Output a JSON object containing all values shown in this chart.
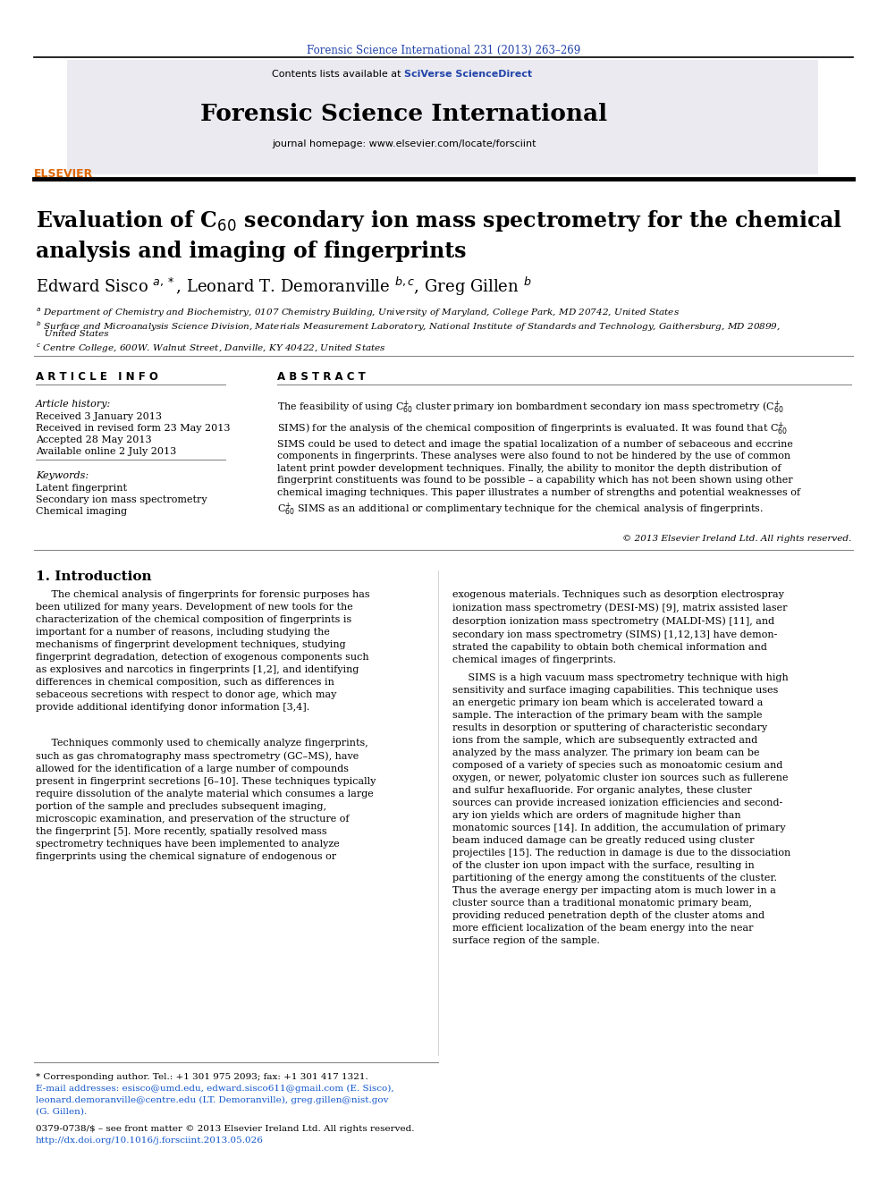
{
  "journal_ref": "Forensic Science International 231 (2013) 263–269",
  "journal_name": "Forensic Science International",
  "journal_url": "journal homepage: www.elsevier.com/locate/forsciint",
  "copyright": "© 2013 Elsevier Ireland Ltd. All rights reserved.",
  "footnote_star": "* Corresponding author. Tel.: +1 301 975 2093; fax: +1 301 417 1321.",
  "issn": "0379-0738/$ – see front matter © 2013 Elsevier Ireland Ltd. All rights reserved.",
  "doi": "http://dx.doi.org/10.1016/j.forsciint.2013.05.026",
  "bg_color": "#ffffff",
  "blue_color": "#2244aa",
  "link_color": "#1155cc",
  "orange_color": "#dd6600"
}
